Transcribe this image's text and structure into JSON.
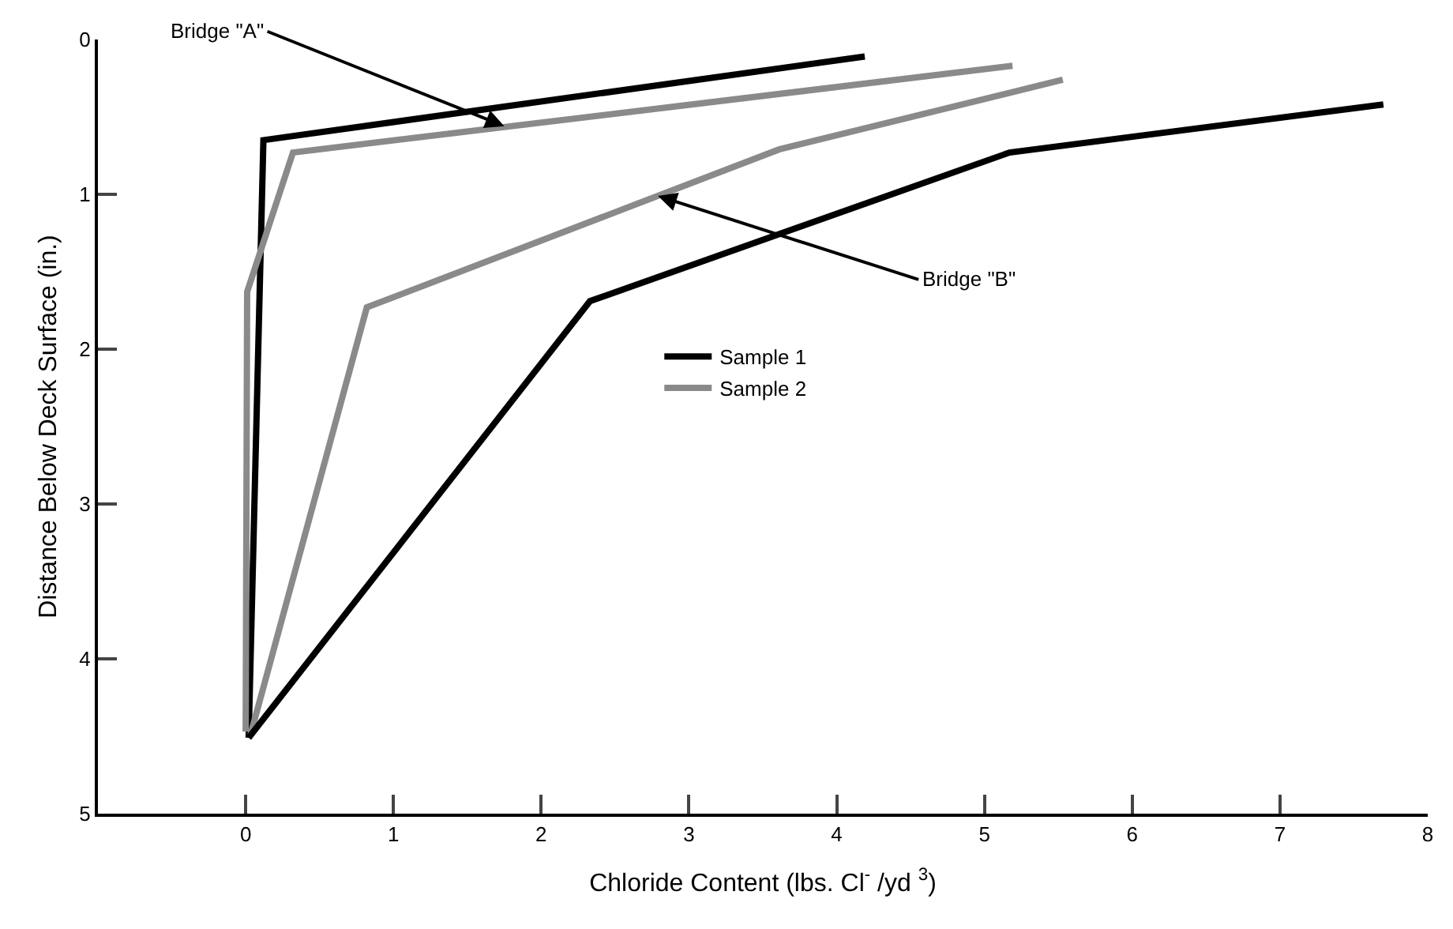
{
  "chart_data": {
    "type": "line",
    "xlabel": "Chloride Content (lbs. Cl$^{-}$ /yd $^{3}$)",
    "ylabel": "Distance Below Deck Surface (in.)",
    "xlim": [
      -1,
      8
    ],
    "xticks": [
      0,
      1,
      2,
      3,
      4,
      5,
      6,
      7,
      8
    ],
    "ylim": [
      5,
      0
    ],
    "yticks": [
      0,
      1,
      2,
      3,
      4,
      5
    ],
    "legend": "right",
    "marker": "none",
    "line_style": "solid",
    "series": [
      {
        "name": "Sample 1",
        "color": "#000000",
        "x": [
          4.19,
          0.12,
          0.02
        ],
        "values": [
          0.11,
          0.65,
          4.51
        ]
      },
      {
        "name": "Sample 2",
        "color": "#8a8a8a",
        "x": [
          5.19,
          0.32,
          0.01,
          0.0
        ],
        "values": [
          0.17,
          0.73,
          1.63,
          4.47
        ]
      },
      {
        "color": "#8a8a8a",
        "x": [
          5.53,
          3.61,
          0.82,
          0.03
        ],
        "values": [
          0.26,
          0.71,
          1.73,
          4.5
        ]
      },
      {
        "color": "#000000",
        "x": [
          7.7,
          5.17,
          2.33,
          0.02
        ],
        "values": [
          0.42,
          0.73,
          1.69,
          4.51
        ]
      }
    ],
    "annotations": [
      {
        "text": "Bridge \"A\"",
        "x": 1.75,
        "y": 0.56
      },
      {
        "text": "Bridge \"B\"",
        "x": 2.79,
        "y": 1.01
      }
    ]
  }
}
